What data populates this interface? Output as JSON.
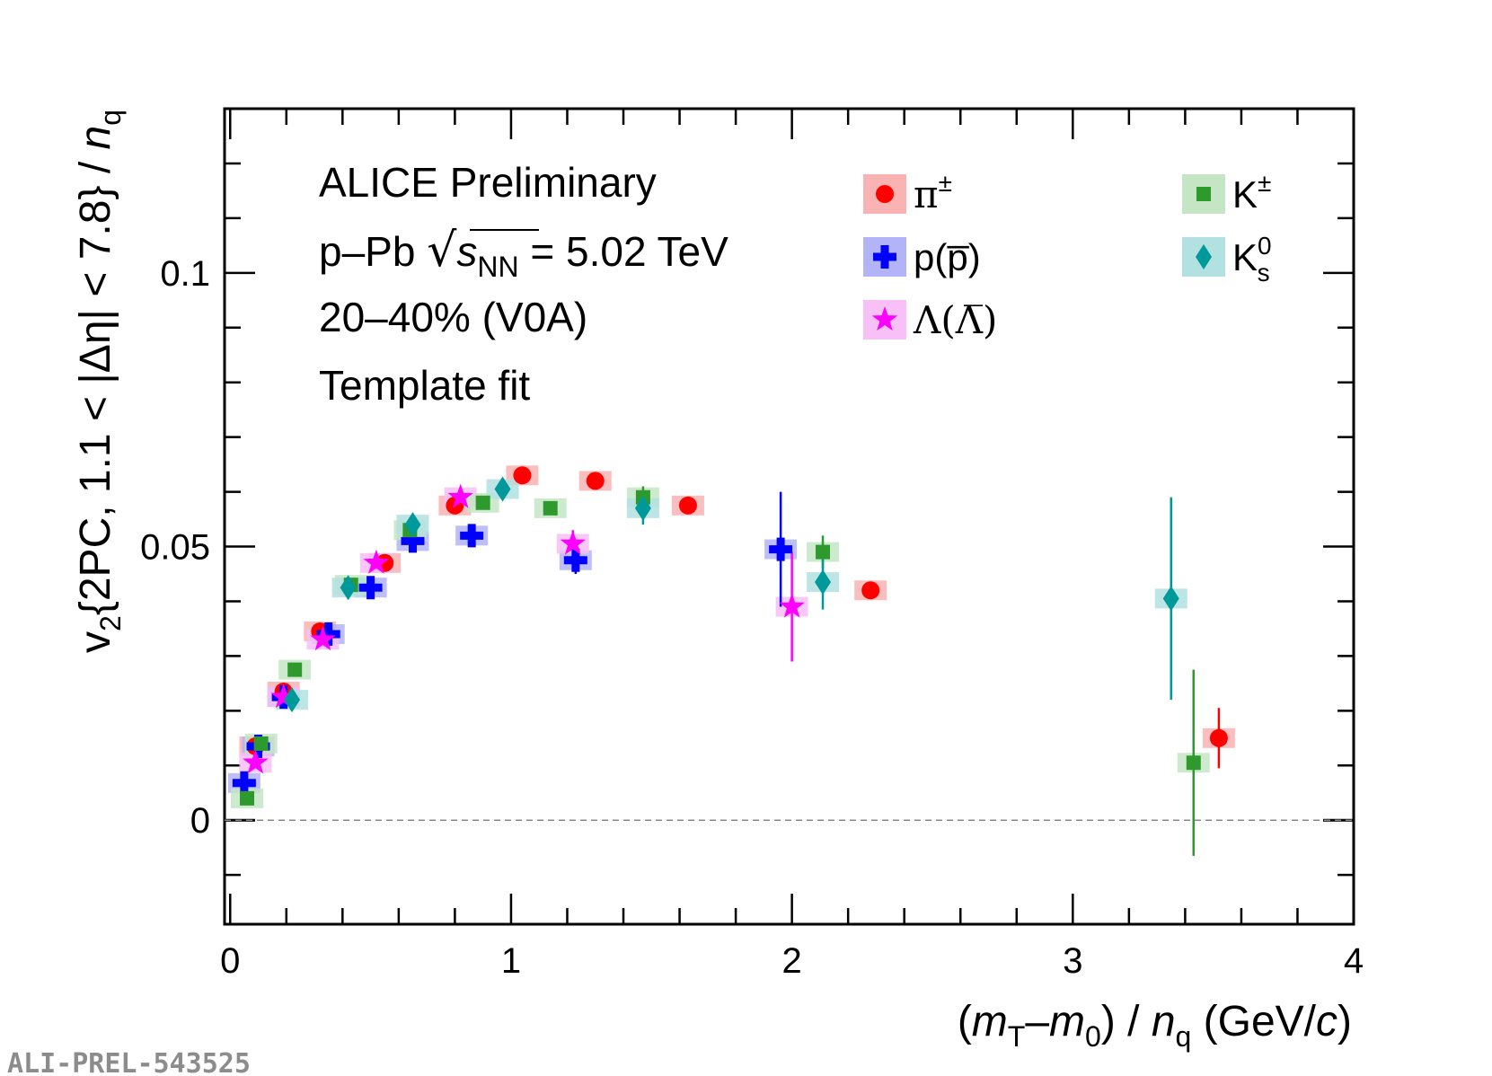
{
  "chart_data": {
    "type": "scatter",
    "title": "",
    "xlabel": {
      "open": "(",
      "m": "m",
      "T": "T",
      "dash": "–",
      "m2": "m",
      "zero": "0",
      "close": ") / ",
      "n": "n",
      "q": "q",
      "unit": " (GeV/",
      "c": "c",
      "end": ")"
    },
    "ylabel": {
      "v": "v",
      "two": "2",
      "rest": "{2PC, 1.1 < |Δη| < 7.8} / ",
      "n": "n",
      "q": "q"
    },
    "xlim": [
      -0.02,
      4.0
    ],
    "ylim": [
      -0.019,
      0.13
    ],
    "x_ticks": [
      0,
      1,
      2,
      3,
      4
    ],
    "x_tick_labels": [
      "0",
      "1",
      "2",
      "3",
      "4"
    ],
    "y_ticks": [
      0,
      0.05,
      0.1
    ],
    "y_tick_labels": [
      "0",
      "0.05",
      "0.1"
    ],
    "reference_line": 0,
    "annotations": {
      "line1": "ALICE Preliminary",
      "line2_a": "p–Pb ",
      "line2_s": "s",
      "line2_nn": "NN",
      "line2_b": " = 5.02 TeV",
      "line3": "20–40% (V0A)",
      "line4": "Template fit"
    },
    "watermark": "ALI-PREL-543525",
    "series": [
      {
        "name": "π±",
        "label_main": "π",
        "label_sup": "±",
        "label_sub": "",
        "marker": "circle",
        "color": "#ff0000",
        "box_color": "#f9b3b3",
        "points": [
          {
            "x": 0.09,
            "y": 0.0135,
            "err": 0.0003
          },
          {
            "x": 0.19,
            "y": 0.0235,
            "err": 0.0003
          },
          {
            "x": 0.32,
            "y": 0.0345,
            "err": 0.0003
          },
          {
            "x": 0.55,
            "y": 0.047,
            "err": 0.0003
          },
          {
            "x": 0.8,
            "y": 0.0575,
            "err": 0.0003
          },
          {
            "x": 1.04,
            "y": 0.063,
            "err": 0.0003
          },
          {
            "x": 1.3,
            "y": 0.062,
            "err": 0.0003
          },
          {
            "x": 1.63,
            "y": 0.0575,
            "err": 0.0004
          },
          {
            "x": 2.28,
            "y": 0.042,
            "err": 0.0008
          },
          {
            "x": 3.52,
            "y": 0.015,
            "err": 0.0055
          }
        ]
      },
      {
        "name": "p(p̅)",
        "label_main": "p(p̅)",
        "label_sup": "",
        "label_sub": "",
        "marker": "cross",
        "color": "#0000ff",
        "box_color": "#b3b3f7",
        "points": [
          {
            "x": 0.05,
            "y": 0.0068,
            "err": 0.001
          },
          {
            "x": 0.1,
            "y": 0.0135,
            "err": 0.0008
          },
          {
            "x": 0.19,
            "y": 0.0225,
            "err": 0.0008
          },
          {
            "x": 0.35,
            "y": 0.034,
            "err": 0.0008
          },
          {
            "x": 0.5,
            "y": 0.0425,
            "err": 0.0008
          },
          {
            "x": 0.65,
            "y": 0.051,
            "err": 0.001
          },
          {
            "x": 0.86,
            "y": 0.052,
            "err": 0.0012
          },
          {
            "x": 1.23,
            "y": 0.0475,
            "err": 0.0025
          },
          {
            "x": 1.96,
            "y": 0.0495,
            "err": 0.0105
          }
        ]
      },
      {
        "name": "Λ(Λ̅)",
        "label_main": "Λ(Λ̅)",
        "label_sup": "",
        "label_sub": "",
        "marker": "star",
        "color": "#ff00ff",
        "box_color": "#f7c0f7",
        "points": [
          {
            "x": 0.09,
            "y": 0.0105,
            "err": 0.0005
          },
          {
            "x": 0.19,
            "y": 0.0225,
            "err": 0.0005
          },
          {
            "x": 0.33,
            "y": 0.033,
            "err": 0.0005
          },
          {
            "x": 0.52,
            "y": 0.047,
            "err": 0.0008
          },
          {
            "x": 0.82,
            "y": 0.059,
            "err": 0.0015
          },
          {
            "x": 1.22,
            "y": 0.0505,
            "err": 0.0025
          },
          {
            "x": 2.0,
            "y": 0.039,
            "err": 0.01
          }
        ]
      },
      {
        "name": "K±",
        "label_main": "K",
        "label_sup": "±",
        "label_sub": "",
        "marker": "square",
        "color": "#2e9a2e",
        "box_color": "#c5e6c5",
        "points": [
          {
            "x": 0.06,
            "y": 0.004,
            "err": 0.0005
          },
          {
            "x": 0.11,
            "y": 0.014,
            "err": 0.0005
          },
          {
            "x": 0.23,
            "y": 0.0275,
            "err": 0.0005
          },
          {
            "x": 0.43,
            "y": 0.043,
            "err": 0.0005
          },
          {
            "x": 0.64,
            "y": 0.053,
            "err": 0.0005
          },
          {
            "x": 0.9,
            "y": 0.058,
            "err": 0.0005
          },
          {
            "x": 1.14,
            "y": 0.057,
            "err": 0.0008
          },
          {
            "x": 1.47,
            "y": 0.059,
            "err": 0.002
          },
          {
            "x": 2.11,
            "y": 0.049,
            "err": 0.003
          },
          {
            "x": 3.43,
            "y": 0.0105,
            "err": 0.017
          }
        ]
      },
      {
        "name": "K0s",
        "label_main": "K",
        "label_sup": "0",
        "label_sub": "s",
        "marker": "diamond",
        "color": "#009999",
        "box_color": "#b3e0e0",
        "points": [
          {
            "x": 0.22,
            "y": 0.022,
            "err": 0.0005
          },
          {
            "x": 0.42,
            "y": 0.0425,
            "err": 0.0005
          },
          {
            "x": 0.65,
            "y": 0.054,
            "err": 0.0008
          },
          {
            "x": 0.97,
            "y": 0.0605,
            "err": 0.001
          },
          {
            "x": 1.47,
            "y": 0.057,
            "err": 0.003
          },
          {
            "x": 2.11,
            "y": 0.0435,
            "err": 0.005
          },
          {
            "x": 3.35,
            "y": 0.0405,
            "err": 0.0185
          }
        ]
      }
    ]
  }
}
